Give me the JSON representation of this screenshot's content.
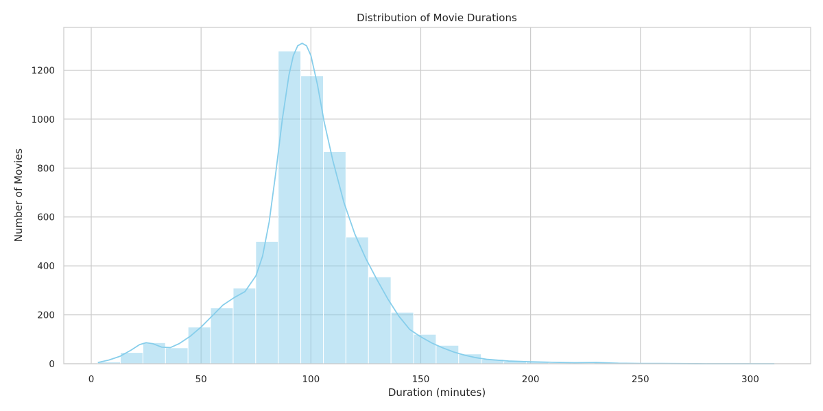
{
  "chart_data": {
    "type": "bar",
    "subtype": "histogram",
    "title": "Distribution of Movie Durations",
    "xlabel": "Duration (minutes)",
    "ylabel": "Number of Movies",
    "xlim": [
      -12.5,
      327.5
    ],
    "ylim": [
      0,
      1375
    ],
    "x_ticks": [
      0,
      50,
      100,
      150,
      200,
      250,
      300
    ],
    "y_ticks": [
      0,
      200,
      400,
      600,
      800,
      1000,
      1200
    ],
    "grid": true,
    "bin_edges": [
      3,
      13.27,
      23.53,
      33.8,
      44.07,
      54.33,
      64.6,
      74.87,
      85.13,
      95.4,
      105.67,
      115.93,
      126.2,
      136.47,
      146.73,
      157,
      167.27,
      177.53,
      187.8,
      198.07,
      208.33,
      218.6,
      228.87,
      239.13,
      249.4,
      259.67,
      269.93,
      280.2,
      290.47,
      300.73,
      311
    ],
    "counts": [
      7,
      46,
      86,
      65,
      150,
      228,
      309,
      500,
      1278,
      1177,
      867,
      518,
      355,
      210,
      120,
      75,
      40,
      18,
      10,
      8,
      4,
      3,
      5,
      2,
      1,
      1,
      1,
      0,
      0,
      2
    ],
    "bar_color": "#87ceeb",
    "kde_color": "#87ceeb",
    "kde": {
      "x": [
        3,
        8,
        13,
        18,
        22,
        25,
        28,
        32,
        36,
        40,
        45,
        50,
        55,
        60,
        65,
        70,
        75,
        78,
        81,
        84,
        87,
        90,
        92,
        94,
        96,
        98,
        100,
        103,
        106,
        110,
        115,
        120,
        125,
        130,
        135,
        140,
        145,
        150,
        155,
        160,
        165,
        170,
        175,
        180,
        190,
        200,
        210,
        220,
        230,
        240,
        250,
        260,
        280,
        300,
        311
      ],
      "y": [
        5,
        15,
        30,
        55,
        78,
        86,
        82,
        68,
        66,
        82,
        112,
        150,
        195,
        240,
        270,
        295,
        360,
        440,
        580,
        780,
        1000,
        1180,
        1260,
        1300,
        1310,
        1300,
        1260,
        1140,
        990,
        830,
        660,
        530,
        430,
        345,
        265,
        195,
        140,
        110,
        85,
        65,
        48,
        35,
        25,
        18,
        11,
        8,
        6,
        4,
        5,
        2,
        1,
        1,
        0,
        0,
        0
      ]
    }
  }
}
